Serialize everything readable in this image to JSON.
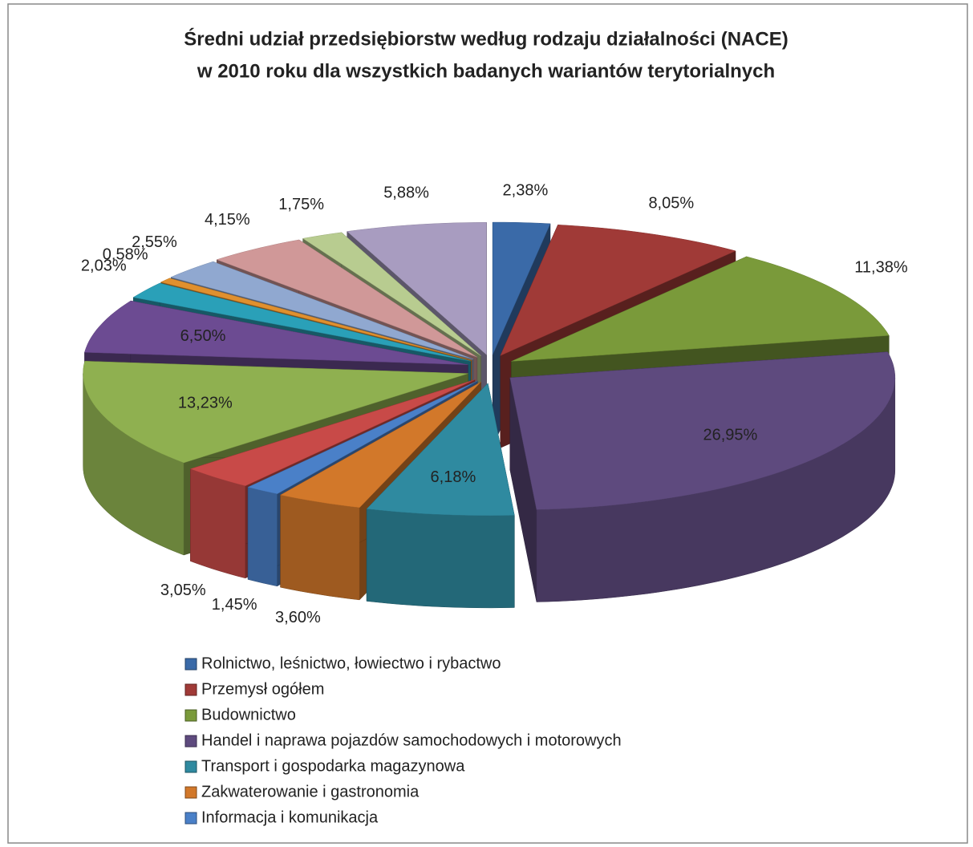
{
  "chart_data": {
    "type": "pie3d",
    "title": [
      "Średni udział przedsiębiorstw według rodzaju działalności (NACE)",
      "w 2010 roku dla wszystkich badanych wariantów terytorialnych"
    ],
    "categories": [
      "Rolnictwo, leśnictwo, łowiectwo i rybactwo",
      "Przemysł ogółem",
      "Budownictwo",
      "Handel i naprawa pojazdów samochodowych i motorowych",
      "Transport i gospodarka magazynowa",
      "Zakwaterowanie i gastronomia",
      "Informacja i komunikacja",
      null,
      null,
      null,
      null,
      null,
      null,
      null,
      null,
      null
    ],
    "values": [
      2.38,
      8.05,
      11.38,
      26.95,
      6.18,
      3.6,
      1.45,
      3.05,
      13.23,
      6.5,
      2.03,
      0.58,
      2.55,
      4.15,
      1.75,
      5.88
    ],
    "value_labels": [
      "2,38%",
      "8,05%",
      "11,38%",
      "26,95%",
      "6,18%",
      "3,60%",
      "1,45%",
      "3,05%",
      "13,23%",
      "6,50%",
      "2,03%",
      "0,58%",
      "2,55%",
      "4,15%",
      "1,75%",
      "5,88%"
    ],
    "colors": [
      "#3a6aa8",
      "#a03a37",
      "#7a9a3a",
      "#5e4a7e",
      "#2f8aa0",
      "#d2782a",
      "#4a80c8",
      "#c84a48",
      "#8fb050",
      "#6c4b92",
      "#2aa0b8",
      "#e0902e",
      "#90a8d0",
      "#d09898",
      "#b8cc90",
      "#a89cc0"
    ]
  }
}
